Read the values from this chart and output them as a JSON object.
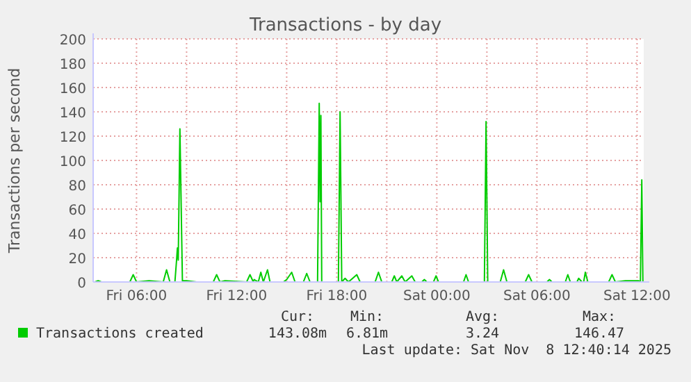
{
  "chart_data": {
    "type": "line",
    "title": "Transactions - by day",
    "ylabel": "Transactions per second",
    "xlim": [
      "2025-11-07T03:24",
      "2025-11-08T12:24"
    ],
    "xticks": [
      {
        "value": "2025-11-07T06:00",
        "label": "Fri 06:00"
      },
      {
        "value": "2025-11-07T09:00",
        "label": null
      },
      {
        "value": "2025-11-07T12:00",
        "label": "Fri 12:00"
      },
      {
        "value": "2025-11-07T15:00",
        "label": null
      },
      {
        "value": "2025-11-07T18:00",
        "label": "Fri 18:00"
      },
      {
        "value": "2025-11-07T21:00",
        "label": null
      },
      {
        "value": "2025-11-08T00:00",
        "label": "Sat 00:00"
      },
      {
        "value": "2025-11-08T03:00",
        "label": null
      },
      {
        "value": "2025-11-08T06:00",
        "label": "Sat 06:00"
      },
      {
        "value": "2025-11-08T09:00",
        "label": null
      },
      {
        "value": "2025-11-08T12:00",
        "label": "Sat 12:00"
      }
    ],
    "ylim": [
      0,
      200
    ],
    "yticks": [
      0,
      20,
      40,
      60,
      80,
      100,
      120,
      140,
      160,
      180,
      200
    ],
    "grid": true,
    "legend": "bottom",
    "line_style": "solid",
    "series": [
      {
        "name": "Transactions created",
        "color": "#00cc00",
        "x": [
          "2025-11-07T03:30",
          "2025-11-07T03:42",
          "2025-11-07T03:54",
          "2025-11-07T04:36",
          "2025-11-07T05:36",
          "2025-11-07T05:48",
          "2025-11-07T06:00",
          "2025-11-07T06:45",
          "2025-11-07T07:36",
          "2025-11-07T07:48",
          "2025-11-07T08:00",
          "2025-11-07T08:18",
          "2025-11-07T08:24",
          "2025-11-07T08:27",
          "2025-11-07T08:30",
          "2025-11-07T08:36",
          "2025-11-07T08:45",
          "2025-11-07T09:00",
          "2025-11-07T09:36",
          "2025-11-07T10:36",
          "2025-11-07T10:48",
          "2025-11-07T11:00",
          "2025-11-07T11:18",
          "2025-11-07T12:36",
          "2025-11-07T12:48",
          "2025-11-07T13:00",
          "2025-11-07T13:03",
          "2025-11-07T13:18",
          "2025-11-07T13:27",
          "2025-11-07T13:36",
          "2025-11-07T13:51",
          "2025-11-07T14:00",
          "2025-11-07T14:48",
          "2025-11-07T15:00",
          "2025-11-07T15:18",
          "2025-11-07T15:30",
          "2025-11-07T16:00",
          "2025-11-07T16:12",
          "2025-11-07T16:24",
          "2025-11-07T16:51",
          "2025-11-07T16:57",
          "2025-11-07T17:00",
          "2025-11-07T17:03",
          "2025-11-07T17:06",
          "2025-11-07T17:18",
          "2025-11-07T18:06",
          "2025-11-07T18:12",
          "2025-11-07T18:18",
          "2025-11-07T18:30",
          "2025-11-07T18:42",
          "2025-11-07T19:12",
          "2025-11-07T19:24",
          "2025-11-07T20:18",
          "2025-11-07T20:30",
          "2025-11-07T20:42",
          "2025-11-07T21:18",
          "2025-11-07T21:27",
          "2025-11-07T21:36",
          "2025-11-07T21:54",
          "2025-11-07T22:06",
          "2025-11-07T22:30",
          "2025-11-07T22:42",
          "2025-11-07T23:06",
          "2025-11-07T23:15",
          "2025-11-07T23:24",
          "2025-11-07T23:48",
          "2025-11-07T23:57",
          "2025-11-08T00:06",
          "2025-11-08T01:36",
          "2025-11-08T01:45",
          "2025-11-08T01:54",
          "2025-11-08T02:51",
          "2025-11-08T02:57",
          "2025-11-08T03:03",
          "2025-11-08T03:48",
          "2025-11-08T04:00",
          "2025-11-08T04:12",
          "2025-11-08T05:18",
          "2025-11-08T05:30",
          "2025-11-08T05:42",
          "2025-11-08T06:36",
          "2025-11-08T06:45",
          "2025-11-08T06:54",
          "2025-11-08T07:42",
          "2025-11-08T07:51",
          "2025-11-08T08:00",
          "2025-11-08T08:24",
          "2025-11-08T08:30",
          "2025-11-08T08:42",
          "2025-11-08T08:48",
          "2025-11-08T08:54",
          "2025-11-08T09:03",
          "2025-11-08T10:18",
          "2025-11-08T10:30",
          "2025-11-08T10:42",
          "2025-11-08T11:18",
          "2025-11-08T12:06",
          "2025-11-08T12:12",
          "2025-11-08T12:17",
          "2025-11-08T12:21"
        ],
        "values": [
          0,
          1,
          0,
          0,
          0,
          6,
          0,
          1,
          0,
          10,
          0,
          0,
          18,
          28,
          18,
          126,
          1,
          1,
          0,
          0,
          6,
          0,
          1,
          0,
          6,
          0,
          2,
          0,
          8,
          0,
          10,
          0,
          0,
          2,
          8,
          0,
          0,
          7,
          0,
          0,
          147,
          66,
          137,
          0,
          0,
          0,
          140,
          0,
          3,
          0,
          6,
          0,
          0,
          8,
          0,
          0,
          5,
          0,
          5,
          0,
          5,
          0,
          0,
          2,
          0,
          0,
          5,
          0,
          0,
          6,
          0,
          0,
          132,
          0,
          0,
          10,
          0,
          0,
          6,
          0,
          0,
          2,
          0,
          0,
          6,
          0,
          0,
          3,
          0,
          0,
          8,
          0,
          0,
          6,
          0,
          1,
          1,
          0,
          84,
          0
        ]
      }
    ],
    "annotations": [
      "Cur:",
      "Min:",
      "Avg:",
      "Max:",
      "143.08m",
      "6.81m",
      "3.24",
      "146.47",
      "Last update: Sat Nov  8 12:40:14 2025"
    ]
  }
}
